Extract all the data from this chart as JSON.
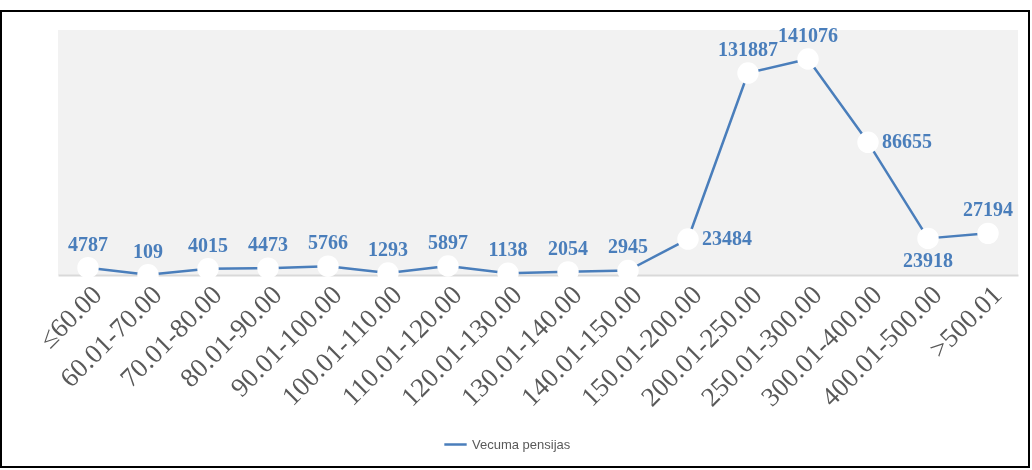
{
  "chart_data": {
    "type": "line",
    "categories": [
      "≤60.00",
      "60.01-70.00",
      "70.01-80.00",
      "80.01-90.00",
      "90.01-100.00",
      "100.01-110.00",
      "110.01-120.00",
      "120.01-130.00",
      "130.01-140.00",
      "140.01-150.00",
      "150.01-200.00",
      "200.01-250.00",
      "250.01-300.00",
      "300.01-400.00",
      "400.01-500.00",
      ">500.01"
    ],
    "series": [
      {
        "name": "Vecuma pensijas",
        "color": "#4a7ebb",
        "values": [
          4787,
          109,
          4015,
          4473,
          5766,
          1293,
          5897,
          1138,
          2054,
          2945,
          23484,
          131887,
          141076,
          86655,
          23918,
          27194
        ]
      }
    ],
    "ylim": [
      0,
      160000
    ],
    "tick_labels": "x",
    "data_labels": true,
    "marker": "circle",
    "line_style": "solid",
    "legend": "bottom"
  }
}
